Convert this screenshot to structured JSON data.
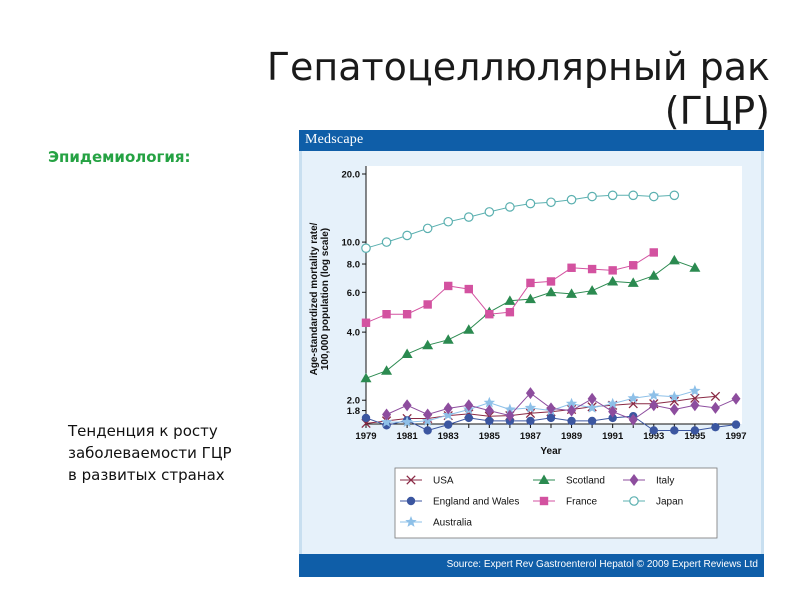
{
  "slide": {
    "title": "Гепатоцеллюлярный рак (ГЦР)",
    "subtitle": "Эпидемиология:",
    "note": "Тенденция к росту заболеваемости ГЦР в развитых странах"
  },
  "figure": {
    "brand": "Medscape",
    "source": "Source: Expert Rev Gastroenterol Hepatol © 2009 Expert Reviews Ltd"
  },
  "chart_data": {
    "type": "line",
    "xlabel": "Year",
    "ylabel": "Age-standardized mortality rate/ 100,000 population (log scale)",
    "xlim": [
      1979,
      1997
    ],
    "x_ticks": [
      1979,
      1981,
      1983,
      1985,
      1987,
      1989,
      1991,
      1993,
      1995,
      1997
    ],
    "y_scale": "log",
    "y_ticks": [
      1.8,
      2.0,
      4.0,
      6.0,
      8.0,
      10.0,
      20.0
    ],
    "y_tick_labels": [
      "1.8",
      "2.0",
      "4.0",
      "6.0",
      "8.0",
      "10.0",
      "20.0"
    ],
    "grid": false,
    "legend_position": "bottom",
    "series": [
      {
        "name": "USA",
        "marker": "x",
        "color": "#8a2a45",
        "x": [
          1979,
          1980,
          1981,
          1982,
          1983,
          1984,
          1985,
          1986,
          1987,
          1988,
          1989,
          1990,
          1991,
          1992,
          1993,
          1994,
          1995,
          1996
        ],
        "y": [
          1.58,
          1.62,
          1.66,
          1.66,
          1.71,
          1.74,
          1.7,
          1.71,
          1.75,
          1.78,
          1.82,
          1.87,
          1.9,
          1.93,
          1.93,
          1.98,
          2.04,
          2.08
        ]
      },
      {
        "name": "England and Wales",
        "marker": "circle",
        "color": "#3b56a0",
        "x": [
          1979,
          1980,
          1981,
          1982,
          1983,
          1984,
          1985,
          1986,
          1987,
          1988,
          1989,
          1990,
          1991,
          1992,
          1993,
          1994,
          1995,
          1996,
          1997
        ],
        "y": [
          1.67,
          1.55,
          1.63,
          1.47,
          1.56,
          1.67,
          1.62,
          1.62,
          1.62,
          1.67,
          1.62,
          1.62,
          1.67,
          1.7,
          1.47,
          1.47,
          1.47,
          1.52,
          1.56
        ]
      },
      {
        "name": "Australia",
        "marker": "star",
        "color": "#8ec0e8",
        "x": [
          1980,
          1981,
          1982,
          1983,
          1984,
          1985,
          1986,
          1987,
          1988,
          1989,
          1990,
          1991,
          1992,
          1993,
          1994,
          1995
        ],
        "y": [
          1.6,
          1.6,
          1.62,
          1.72,
          1.82,
          1.95,
          1.82,
          1.85,
          1.8,
          1.93,
          1.85,
          1.93,
          2.04,
          2.1,
          2.07,
          2.2
        ]
      },
      {
        "name": "Scotland",
        "marker": "triangle",
        "color": "#2b8a50",
        "x": [
          1979,
          1980,
          1981,
          1982,
          1983,
          1984,
          1985,
          1986,
          1987,
          1988,
          1989,
          1990,
          1991,
          1992,
          1993,
          1994,
          1995
        ],
        "y": [
          2.5,
          2.7,
          3.2,
          3.5,
          3.7,
          4.1,
          4.9,
          5.5,
          5.6,
          6.0,
          5.9,
          6.1,
          6.7,
          6.6,
          7.1,
          8.3,
          7.7
        ]
      },
      {
        "name": "France",
        "marker": "square",
        "color": "#d352a0",
        "x": [
          1979,
          1980,
          1981,
          1982,
          1983,
          1984,
          1985,
          1986,
          1987,
          1988,
          1989,
          1990,
          1991,
          1992,
          1993
        ],
        "y": [
          4.4,
          4.8,
          4.8,
          5.3,
          6.4,
          6.2,
          4.8,
          4.9,
          6.6,
          6.7,
          7.7,
          7.6,
          7.5,
          7.9,
          9.0
        ]
      },
      {
        "name": "Italy",
        "marker": "diamond",
        "color": "#8d4d9e",
        "x": [
          1980,
          1981,
          1982,
          1983,
          1984,
          1985,
          1986,
          1987,
          1988,
          1989,
          1990,
          1991,
          1992,
          1993,
          1994,
          1995,
          1996,
          1997
        ],
        "y": [
          1.73,
          1.9,
          1.73,
          1.84,
          1.9,
          1.8,
          1.71,
          2.15,
          1.84,
          1.8,
          2.03,
          1.78,
          1.64,
          1.9,
          1.82,
          1.9,
          1.85,
          2.03
        ]
      },
      {
        "name": "Japan",
        "marker": "circle-open",
        "color": "#5bb0b0",
        "x": [
          1979,
          1980,
          1981,
          1982,
          1983,
          1984,
          1985,
          1986,
          1987,
          1988,
          1989,
          1990,
          1991,
          1992,
          1993,
          1994
        ],
        "y": [
          9.4,
          10.0,
          10.7,
          11.5,
          12.3,
          12.9,
          13.6,
          14.3,
          14.8,
          15.0,
          15.4,
          15.9,
          16.1,
          16.1,
          15.9,
          16.1
        ]
      }
    ]
  }
}
